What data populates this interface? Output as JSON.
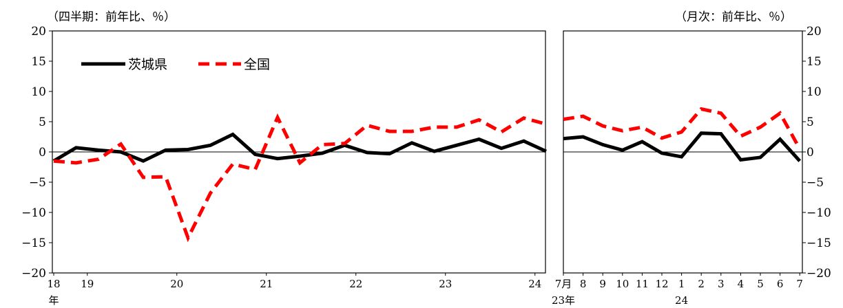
{
  "colors": {
    "ibaraki": "#000000",
    "national": "#ff0000",
    "axis": "#000000"
  },
  "chart_data": [
    {
      "type": "line",
      "unit_label": "（四半期：前年比、％）",
      "ylim": [
        -20,
        20
      ],
      "yticks": [
        -20,
        -15,
        -10,
        -5,
        0,
        5,
        10,
        15,
        20
      ],
      "x_tick_labels": [
        {
          "label": "18",
          "at": 0,
          "sub": "年"
        },
        {
          "label": "19",
          "at": 1.5
        },
        {
          "label": "20",
          "at": 5.5
        },
        {
          "label": "21",
          "at": 9.5
        },
        {
          "label": "22",
          "at": 13.5
        },
        {
          "label": "23",
          "at": 17.5
        },
        {
          "label": "24",
          "at": 21.5
        }
      ],
      "legend": [
        {
          "name": "茨城県",
          "style": "solid"
        },
        {
          "name": "全国",
          "style": "dashed"
        }
      ],
      "series": [
        {
          "name": "茨城県",
          "values": [
            -1.5,
            0.7,
            0.3,
            0.0,
            -1.5,
            0.3,
            0.4,
            1.1,
            2.9,
            -0.4,
            -1.1,
            -0.7,
            -0.2,
            1.1,
            -0.1,
            -0.3,
            1.5,
            0.1,
            1.1,
            2.1,
            0.6,
            1.8,
            0.1
          ]
        },
        {
          "name": "全国",
          "values": [
            -1.5,
            -1.8,
            -1.2,
            1.3,
            -4.2,
            -4.1,
            -14.2,
            -6.8,
            -2.0,
            -2.9,
            5.7,
            -1.8,
            1.2,
            1.4,
            4.4,
            3.4,
            3.4,
            4.1,
            4.1,
            5.3,
            3.3,
            5.6,
            4.6
          ]
        }
      ]
    },
    {
      "type": "line",
      "unit_label": "（月次：前年比、％）",
      "ylim": [
        -20,
        20
      ],
      "yticks": [
        -20,
        -15,
        -10,
        -5,
        0,
        5,
        10,
        15,
        20
      ],
      "x_tick_labels": [
        {
          "label": "7月",
          "at": 0,
          "sub": "23年"
        },
        {
          "label": "8",
          "at": 1
        },
        {
          "label": "9",
          "at": 2
        },
        {
          "label": "10",
          "at": 3
        },
        {
          "label": "11",
          "at": 4
        },
        {
          "label": "12",
          "at": 5
        },
        {
          "label": "1",
          "at": 6,
          "sub": "24"
        },
        {
          "label": "2",
          "at": 7
        },
        {
          "label": "3",
          "at": 8
        },
        {
          "label": "4",
          "at": 9
        },
        {
          "label": "5",
          "at": 10
        },
        {
          "label": "6",
          "at": 11
        },
        {
          "label": "7",
          "at": 12
        }
      ],
      "series": [
        {
          "name": "茨城県",
          "values": [
            2.2,
            2.5,
            1.2,
            0.3,
            1.7,
            -0.2,
            -0.8,
            3.1,
            3.0,
            -1.3,
            -0.9,
            2.1,
            -1.5
          ]
        },
        {
          "name": "全国",
          "values": [
            5.4,
            5.9,
            4.3,
            3.5,
            4.1,
            2.3,
            3.3,
            7.1,
            6.4,
            2.6,
            4.1,
            6.4,
            0.5
          ]
        }
      ]
    }
  ]
}
